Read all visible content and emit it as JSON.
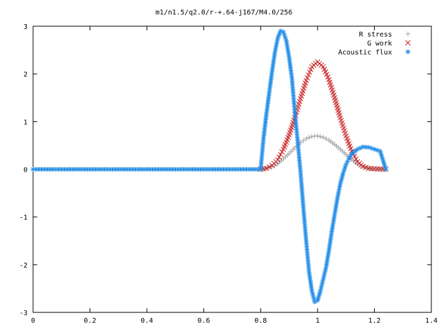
{
  "chart_data": {
    "type": "scatter",
    "title": "m1/n1.5/q2.0/r-+.64-j167/M4.0/256",
    "xlabel": "",
    "ylabel": "",
    "xlim": [
      0,
      1.4
    ],
    "ylim": [
      -3,
      3
    ],
    "x_ticks": [
      "0",
      "0.2",
      "0.4",
      "0.6",
      "0.8",
      "1",
      "1.2",
      "1.4"
    ],
    "y_ticks": [
      "3",
      "2",
      "1",
      "0",
      "-1",
      "-2",
      "-3"
    ],
    "grid": false,
    "legend_position": "top-right",
    "series": [
      {
        "name": "R stress",
        "marker": "plus",
        "color": "#a0a0a0",
        "points": [
          [
            0.0,
            0.0
          ],
          [
            0.1,
            0.0
          ],
          [
            0.2,
            0.0
          ],
          [
            0.3,
            0.0
          ],
          [
            0.4,
            0.0
          ],
          [
            0.5,
            0.0
          ],
          [
            0.6,
            0.0
          ],
          [
            0.7,
            0.0
          ],
          [
            0.8,
            0.0
          ],
          [
            0.82,
            0.02
          ],
          [
            0.84,
            0.06
          ],
          [
            0.86,
            0.12
          ],
          [
            0.88,
            0.22
          ],
          [
            0.9,
            0.33
          ],
          [
            0.92,
            0.45
          ],
          [
            0.94,
            0.56
          ],
          [
            0.96,
            0.64
          ],
          [
            0.98,
            0.69
          ],
          [
            1.0,
            0.7
          ],
          [
            1.02,
            0.67
          ],
          [
            1.04,
            0.61
          ],
          [
            1.06,
            0.52
          ],
          [
            1.08,
            0.42
          ],
          [
            1.1,
            0.31
          ],
          [
            1.12,
            0.2
          ],
          [
            1.14,
            0.11
          ],
          [
            1.16,
            0.05
          ],
          [
            1.18,
            0.02
          ],
          [
            1.2,
            0.01
          ],
          [
            1.24,
            0.0
          ]
        ]
      },
      {
        "name": "G work",
        "marker": "cross",
        "color": "#c81e1e",
        "points": [
          [
            0.8,
            0.0
          ],
          [
            0.82,
            0.02
          ],
          [
            0.84,
            0.08
          ],
          [
            0.86,
            0.2
          ],
          [
            0.88,
            0.42
          ],
          [
            0.9,
            0.72
          ],
          [
            0.92,
            1.08
          ],
          [
            0.94,
            1.48
          ],
          [
            0.96,
            1.86
          ],
          [
            0.98,
            2.15
          ],
          [
            1.0,
            2.25
          ],
          [
            1.02,
            2.15
          ],
          [
            1.04,
            1.88
          ],
          [
            1.06,
            1.5
          ],
          [
            1.08,
            1.08
          ],
          [
            1.1,
            0.7
          ],
          [
            1.12,
            0.38
          ],
          [
            1.14,
            0.16
          ],
          [
            1.16,
            0.06
          ],
          [
            1.18,
            0.02
          ],
          [
            1.2,
            0.01
          ],
          [
            1.24,
            0.0
          ]
        ]
      },
      {
        "name": "Acoustic flux",
        "marker": "star",
        "color": "#1e8ae6",
        "points": [
          [
            0.0,
            0.0
          ],
          [
            0.1,
            0.0
          ],
          [
            0.2,
            0.0
          ],
          [
            0.3,
            0.0
          ],
          [
            0.4,
            0.0
          ],
          [
            0.5,
            0.0
          ],
          [
            0.6,
            0.0
          ],
          [
            0.7,
            0.0
          ],
          [
            0.8,
            0.0
          ],
          [
            0.81,
            0.65
          ],
          [
            0.82,
            1.15
          ],
          [
            0.83,
            1.6
          ],
          [
            0.84,
            2.05
          ],
          [
            0.85,
            2.45
          ],
          [
            0.86,
            2.75
          ],
          [
            0.87,
            2.9
          ],
          [
            0.88,
            2.88
          ],
          [
            0.89,
            2.7
          ],
          [
            0.9,
            2.35
          ],
          [
            0.91,
            1.9
          ],
          [
            0.92,
            1.2
          ],
          [
            0.93,
            0.6
          ],
          [
            0.94,
            -0.05
          ],
          [
            0.95,
            -0.8
          ],
          [
            0.96,
            -1.5
          ],
          [
            0.97,
            -2.15
          ],
          [
            0.98,
            -2.55
          ],
          [
            0.99,
            -2.78
          ],
          [
            1.0,
            -2.75
          ],
          [
            1.01,
            -2.55
          ],
          [
            1.02,
            -2.3
          ],
          [
            1.03,
            -2.05
          ],
          [
            1.04,
            -1.7
          ],
          [
            1.05,
            -1.3
          ],
          [
            1.06,
            -0.95
          ],
          [
            1.07,
            -0.6
          ],
          [
            1.08,
            -0.3
          ],
          [
            1.09,
            -0.08
          ],
          [
            1.1,
            0.1
          ],
          [
            1.11,
            0.22
          ],
          [
            1.12,
            0.32
          ],
          [
            1.14,
            0.42
          ],
          [
            1.16,
            0.47
          ],
          [
            1.18,
            0.46
          ],
          [
            1.2,
            0.42
          ],
          [
            1.22,
            0.38
          ],
          [
            1.24,
            0.0
          ]
        ]
      }
    ]
  },
  "colors": {
    "axis": "#000000",
    "background": "#ffffff"
  }
}
